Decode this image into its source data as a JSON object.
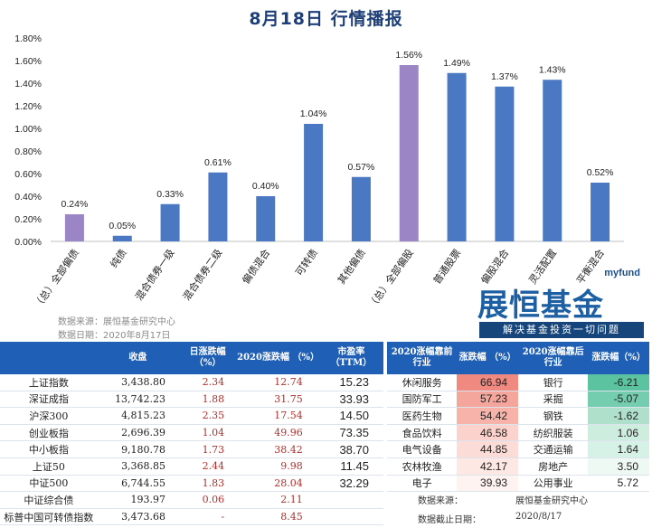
{
  "page_title": "8月18日 行情播报",
  "chart_data": {
    "type": "bar",
    "categories": [
      "（总）全部偏债",
      "纯债",
      "混合债券一级",
      "混合债券二级",
      "偏债混合",
      "可转债",
      "其他偏债",
      "（总）全部偏股",
      "普通股票",
      "偏股混合",
      "灵活配置",
      "平衡混合"
    ],
    "values": [
      0.24,
      0.05,
      0.33,
      0.61,
      0.4,
      1.04,
      0.57,
      1.56,
      1.49,
      1.37,
      1.43,
      0.52
    ],
    "data_labels": [
      "0.24%",
      "0.05%",
      "0.33%",
      "0.61%",
      "0.40%",
      "1.04%",
      "0.57%",
      "1.56%",
      "1.49%",
      "1.37%",
      "1.43%",
      "0.52%"
    ],
    "bar_colors": [
      "#9b85c4",
      "#4a78c2",
      "#4a78c2",
      "#4a78c2",
      "#4a78c2",
      "#4a78c2",
      "#4a78c2",
      "#9b85c4",
      "#4a78c2",
      "#4a78c2",
      "#4a78c2",
      "#4a78c2"
    ],
    "ylim": [
      0,
      1.8
    ],
    "yticks": [
      "0.00%",
      "0.20%",
      "0.40%",
      "0.60%",
      "0.80%",
      "1.00%",
      "1.20%",
      "1.40%",
      "1.60%",
      "1.80%"
    ],
    "xlabel": "",
    "ylabel": "",
    "grid": false
  },
  "source": {
    "line1": "数据来源：展恒基金研究中心",
    "line2": "数据日期：2020年8月17日"
  },
  "logo": {
    "top": "myfund",
    "main": "展恒基金",
    "sub": "解决基金投资一切问题"
  },
  "index_table": {
    "headers": [
      "",
      "收盘",
      "日涨跌幅 （%）",
      "2020涨跌幅 （%）",
      "市盈率 （TTM）"
    ],
    "rows": [
      {
        "name": "上证指数",
        "close": "3,438.80",
        "day": "2.34",
        "ytd": "12.74",
        "pe": "15.23"
      },
      {
        "name": "深证成指",
        "close": "13,742.23",
        "day": "1.88",
        "ytd": "31.75",
        "pe": "33.93"
      },
      {
        "name": "沪深300",
        "close": "4,815.23",
        "day": "2.35",
        "ytd": "17.54",
        "pe": "14.50"
      },
      {
        "name": "创业板指",
        "close": "2,696.39",
        "day": "1.04",
        "ytd": "49.96",
        "pe": "73.35"
      },
      {
        "name": "中小板指",
        "close": "9,180.78",
        "day": "1.73",
        "ytd": "38.42",
        "pe": "38.70"
      },
      {
        "name": "上证50",
        "close": "3,368.85",
        "day": "2.44",
        "ytd": "9.98",
        "pe": "11.45"
      },
      {
        "name": "中证500",
        "close": "6,744.55",
        "day": "1.83",
        "ytd": "28.04",
        "pe": "32.29"
      },
      {
        "name": "中证综合债",
        "close": "193.97",
        "day": "0.06",
        "ytd": "2.11",
        "pe": ""
      },
      {
        "name": "标普中国可转债指数",
        "close": "3,473.68",
        "day": "-",
        "ytd": "8.45",
        "pe": ""
      }
    ]
  },
  "industry_table": {
    "headers": [
      "2020涨幅靠前 行业",
      "涨跌幅 （%）",
      "2020涨幅靠后 行业",
      "涨跌幅（%）"
    ],
    "rows": [
      {
        "top": "休闲服务",
        "top_val": "66.94",
        "top_color": "#f08a80",
        "bot": "银行",
        "bot_val": "-6.21",
        "bot_color": "#5cc3a0"
      },
      {
        "top": "国防军工",
        "top_val": "57.23",
        "top_color": "#f5a69c",
        "bot": "采掘",
        "bot_val": "-5.07",
        "bot_color": "#74cdaf"
      },
      {
        "top": "医药生物",
        "top_val": "54.42",
        "top_color": "#f7b3aa",
        "bot": "钢铁",
        "bot_val": "-1.62",
        "bot_color": "#aee0cb"
      },
      {
        "top": "食品饮料",
        "top_val": "46.58",
        "top_color": "#fbd3cc",
        "bot": "纺织服装",
        "bot_val": "1.06",
        "bot_color": "#cdeedf"
      },
      {
        "top": "电气设备",
        "top_val": "44.85",
        "top_color": "#fcdcd6",
        "bot": "交通运输",
        "bot_val": "1.64",
        "bot_color": "#d6f1e5"
      },
      {
        "top": "农林牧渔",
        "top_val": "42.17",
        "top_color": "#fde8e4",
        "bot": "房地产",
        "bot_val": "3.50",
        "bot_color": "#eef9f4"
      },
      {
        "top": "电子",
        "top_val": "39.93",
        "top_color": "#fff3f1",
        "bot": "公用事业",
        "bot_val": "5.72",
        "bot_color": "#ffffff"
      }
    ]
  },
  "notes": {
    "src_label": "数据来源：",
    "src_value": "展恒基金研究中心",
    "date_label": "数据截止日期：",
    "date_value": "2020/8/17"
  }
}
